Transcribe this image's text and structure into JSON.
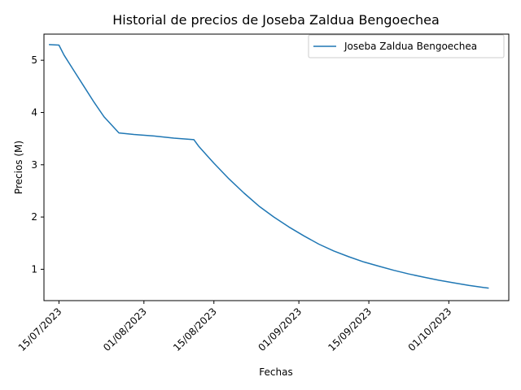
{
  "chart_data": {
    "type": "line",
    "title": "Historial de precios de Joseba Zaldua Bengoechea",
    "xlabel": "Fechas",
    "ylabel": "Precios (M)",
    "xlim": [
      "2023-07-12",
      "2023-10-13"
    ],
    "ylim": [
      0.4,
      5.5
    ],
    "x_ticks": [
      "2023-07-15",
      "2023-08-01",
      "2023-08-15",
      "2023-09-01",
      "2023-09-15",
      "2023-10-01"
    ],
    "x_tick_labels": [
      "15/07/2023",
      "01/08/2023",
      "15/08/2023",
      "01/09/2023",
      "15/09/2023",
      "01/10/2023"
    ],
    "y_ticks": [
      1,
      2,
      3,
      4,
      5
    ],
    "y_tick_labels": [
      "1",
      "2",
      "3",
      "4",
      "5"
    ],
    "legend_position": "top-right",
    "grid": false,
    "series": [
      {
        "name": "Joseba Zaldua Bengoechea",
        "color": "#1f77b4",
        "points": [
          [
            "2023-07-13",
            5.3
          ],
          [
            "2023-07-15",
            5.29
          ],
          [
            "2023-07-16",
            5.1
          ],
          [
            "2023-07-18",
            4.8
          ],
          [
            "2023-07-20",
            4.5
          ],
          [
            "2023-07-22",
            4.2
          ],
          [
            "2023-07-24",
            3.92
          ],
          [
            "2023-07-27",
            3.61
          ],
          [
            "2023-07-30",
            3.58
          ],
          [
            "2023-08-03",
            3.55
          ],
          [
            "2023-08-07",
            3.51
          ],
          [
            "2023-08-11",
            3.48
          ],
          [
            "2023-08-12",
            3.35
          ],
          [
            "2023-08-15",
            3.03
          ],
          [
            "2023-08-18",
            2.73
          ],
          [
            "2023-08-21",
            2.46
          ],
          [
            "2023-08-24",
            2.21
          ],
          [
            "2023-08-27",
            2.0
          ],
          [
            "2023-08-30",
            1.81
          ],
          [
            "2023-09-02",
            1.64
          ],
          [
            "2023-09-05",
            1.48
          ],
          [
            "2023-09-08",
            1.35
          ],
          [
            "2023-09-11",
            1.24
          ],
          [
            "2023-09-14",
            1.14
          ],
          [
            "2023-09-17",
            1.06
          ],
          [
            "2023-09-20",
            0.98
          ],
          [
            "2023-09-23",
            0.91
          ],
          [
            "2023-09-26",
            0.85
          ],
          [
            "2023-09-29",
            0.79
          ],
          [
            "2023-10-02",
            0.74
          ],
          [
            "2023-10-05",
            0.69
          ],
          [
            "2023-10-08",
            0.65
          ],
          [
            "2023-10-09",
            0.64
          ]
        ]
      }
    ]
  }
}
